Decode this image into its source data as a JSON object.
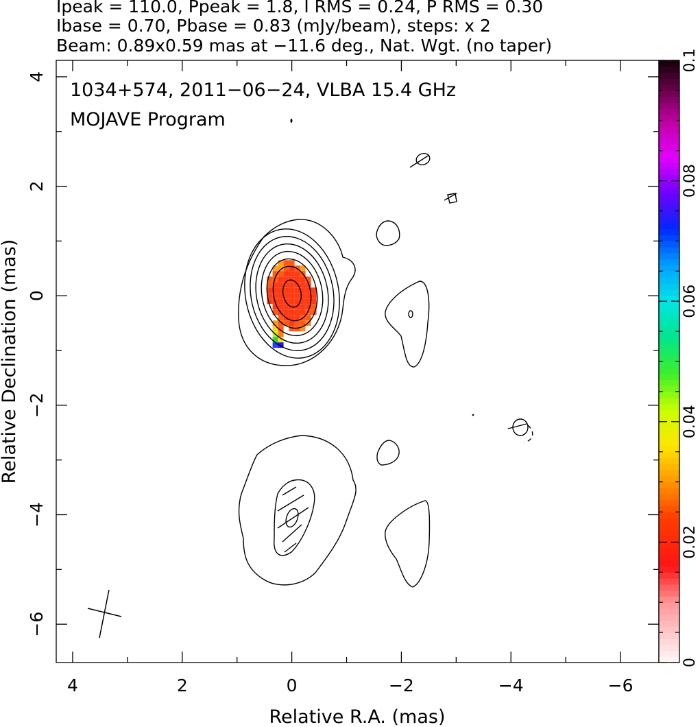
{
  "header": {
    "line1": "Ipeak = 110.0, Ppeak = 1.8, I RMS = 0.24, P RMS = 0.30",
    "line2": "Ibase = 0.70, Pbase = 0.83 (mJy/beam), steps: x 2",
    "line3": "Beam: 0.89x0.59 mas at −11.6 deg., Nat. Wgt. (no taper)"
  },
  "chart_data": {
    "type": "heatmap",
    "title": "1034+574, 2011−06−24, VLBA 15.4 GHz",
    "subtitle": "MOJAVE Program",
    "xlabel": "Relative R.A. (mas)",
    "ylabel": "Relative Declination (mas)",
    "xlim": [
      4.3,
      -6.7
    ],
    "ylim": [
      -6.7,
      4.3
    ],
    "x_ticks": [
      4,
      2,
      0,
      -2,
      -4,
      -6
    ],
    "x_tick_labels": [
      "4",
      "2",
      "0",
      "−2",
      "−4",
      "−6"
    ],
    "y_ticks": [
      -6,
      -4,
      -2,
      0,
      2,
      4
    ],
    "y_tick_labels": [
      "−6",
      "−4",
      "−2",
      "0",
      "2",
      "4"
    ],
    "colorbar": {
      "range": [
        0,
        0.1
      ],
      "ticks": [
        0,
        0.02,
        0.04,
        0.06,
        0.08,
        0.1
      ],
      "tick_labels": [
        "0",
        "0.02",
        "0.04",
        "0.06",
        "0.08",
        "0.1"
      ]
    },
    "beam": {
      "major_mas": 0.89,
      "minor_mas": 0.59,
      "pa_deg": -11.6
    },
    "core": {
      "x": 0.0,
      "y": 0.0
    },
    "jet_component": {
      "x": 0.0,
      "y": -4.1
    }
  },
  "colors": {
    "core_fill": "#ff3a14",
    "contour": "#000000"
  }
}
